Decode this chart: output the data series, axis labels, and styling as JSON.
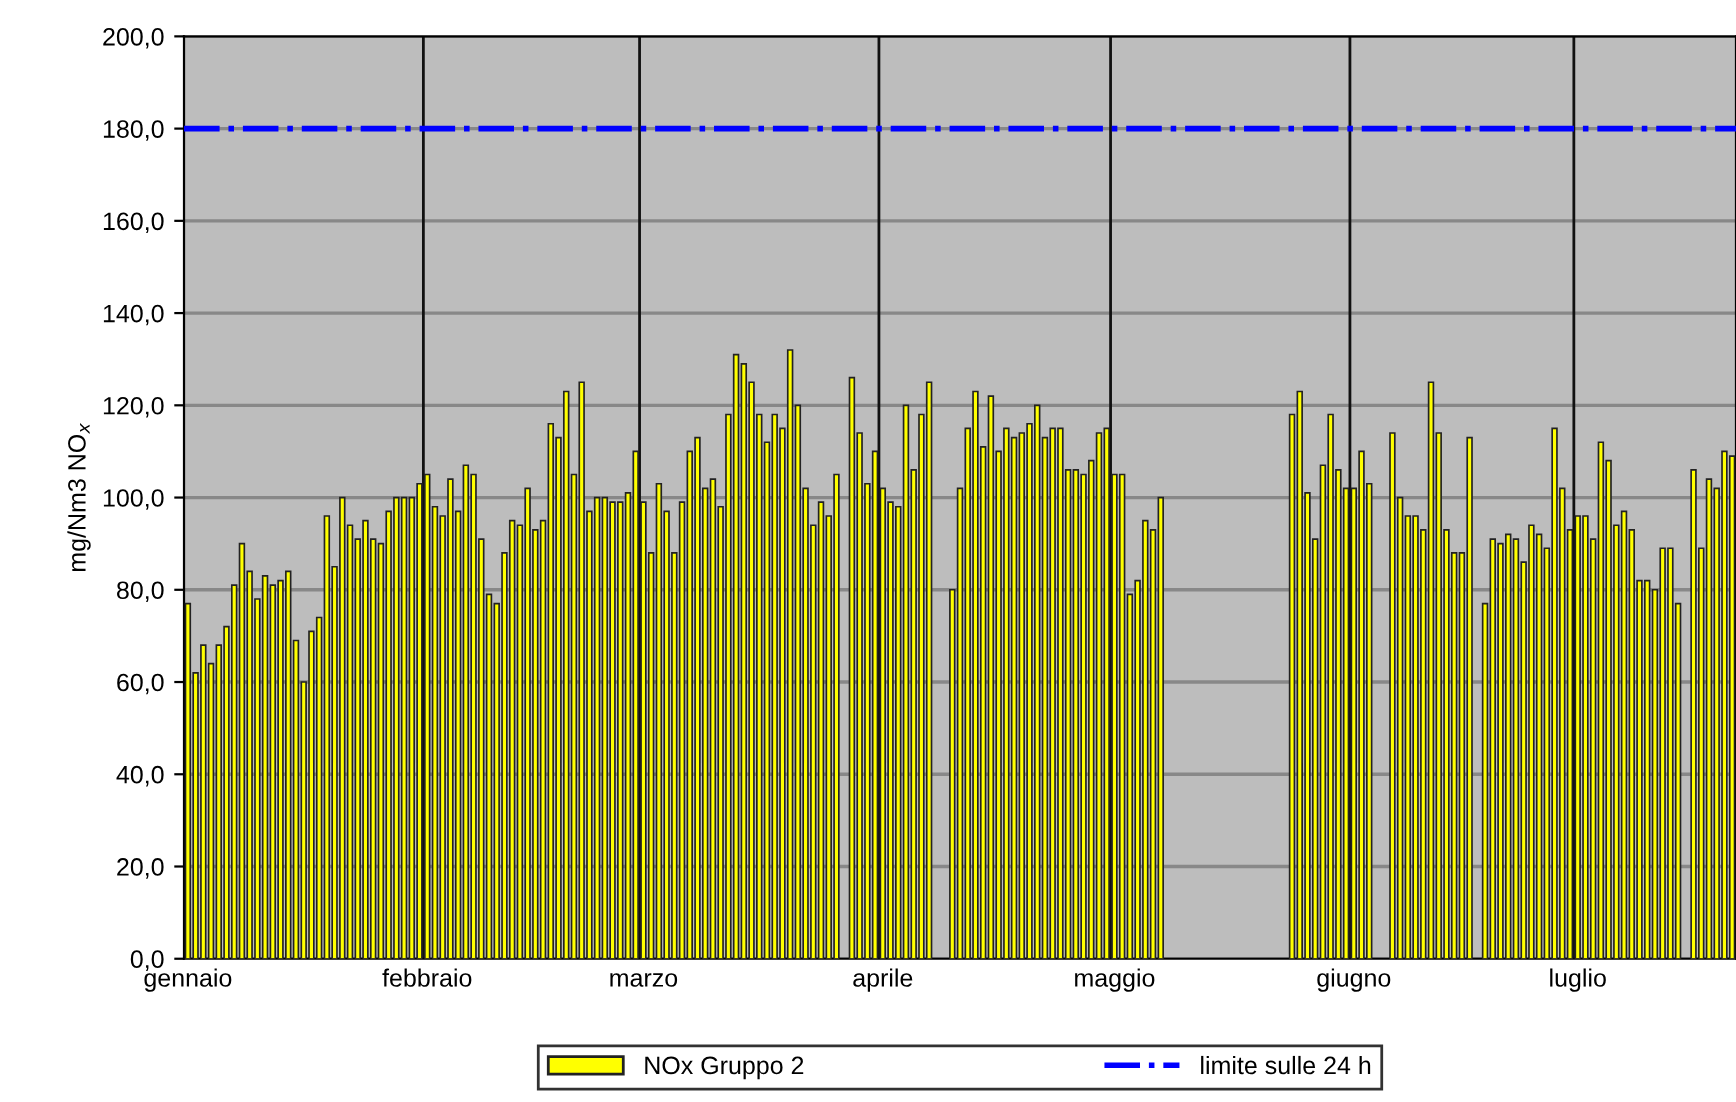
{
  "chart_data": {
    "type": "bar",
    "ylabel": "mg/Nm3 NO$_{x}$",
    "categories": [
      "gennaio",
      null,
      null,
      null,
      null,
      null,
      null,
      null,
      null,
      null,
      null,
      null,
      null,
      null,
      null,
      null,
      null,
      null,
      null,
      null,
      null,
      null,
      null,
      null,
      null,
      null,
      null,
      null,
      null,
      null,
      null,
      "febbraio",
      null,
      null,
      null,
      null,
      null,
      null,
      null,
      null,
      null,
      null,
      null,
      null,
      null,
      null,
      null,
      null,
      null,
      null,
      null,
      null,
      null,
      null,
      null,
      null,
      null,
      null,
      null,
      "marzo",
      null,
      null,
      null,
      null,
      null,
      null,
      null,
      null,
      null,
      null,
      null,
      null,
      null,
      null,
      null,
      null,
      null,
      null,
      null,
      null,
      null,
      null,
      null,
      null,
      null,
      null,
      null,
      null,
      null,
      null,
      "aprile",
      null,
      null,
      null,
      null,
      null,
      null,
      null,
      null,
      null,
      null,
      null,
      null,
      null,
      null,
      null,
      null,
      null,
      null,
      null,
      null,
      null,
      null,
      null,
      null,
      null,
      null,
      null,
      null,
      null,
      "maggio",
      null,
      null,
      null,
      null,
      null,
      null,
      null,
      null,
      null,
      null,
      null,
      null,
      null,
      null,
      null,
      null,
      null,
      null,
      null,
      null,
      null,
      null,
      null,
      null,
      null,
      null,
      null,
      null,
      null,
      null,
      "giugno",
      null,
      null,
      null,
      null,
      null,
      null,
      null,
      null,
      null,
      null,
      null,
      null,
      null,
      null,
      null,
      null,
      null,
      null,
      null,
      null,
      null,
      null,
      null,
      null,
      null,
      null,
      null,
      null,
      "luglio",
      null,
      null,
      null,
      null,
      null,
      null,
      null,
      null,
      null,
      null,
      null,
      null,
      null,
      null,
      null,
      null,
      null,
      null,
      null,
      null
    ],
    "series": [
      {
        "name": "NOx Gruppo 2",
        "color": "#ffff00",
        "values": [
          77,
          62,
          68,
          64,
          68,
          72,
          81,
          90,
          84,
          78,
          83,
          81,
          82,
          84,
          69,
          60,
          71,
          74,
          96,
          85,
          100,
          94,
          91,
          95,
          91,
          90,
          97,
          100,
          100,
          100,
          103,
          105,
          98,
          96,
          104,
          97,
          107,
          105,
          91,
          79,
          77,
          88,
          95,
          94,
          102,
          93,
          95,
          116,
          113,
          123,
          105,
          125,
          97,
          100,
          100,
          99,
          99,
          101,
          110,
          99,
          88,
          103,
          97,
          88,
          99,
          110,
          113,
          102,
          104,
          98,
          118,
          131,
          129,
          125,
          118,
          112,
          118,
          115,
          132,
          120,
          102,
          94,
          99,
          96,
          105,
          null,
          126,
          114,
          103,
          110,
          102,
          99,
          98,
          120,
          106,
          118,
          125,
          null,
          null,
          80,
          102,
          115,
          123,
          111,
          122,
          110,
          115,
          113,
          114,
          116,
          120,
          113,
          115,
          115,
          106,
          106,
          105,
          108,
          114,
          115,
          105,
          105,
          79,
          82,
          95,
          93,
          100,
          null,
          null,
          null,
          null,
          null,
          null,
          null,
          null,
          null,
          null,
          null,
          null,
          null,
          null,
          null,
          null,
          118,
          123,
          101,
          91,
          107,
          118,
          106,
          102,
          102,
          110,
          103,
          null,
          null,
          114,
          100,
          96,
          96,
          93,
          125,
          114,
          93,
          88,
          88,
          113,
          null,
          77,
          91,
          90,
          92,
          91,
          86,
          94,
          92,
          89,
          115,
          102,
          93,
          96,
          96,
          91,
          112,
          108,
          94,
          97,
          93,
          82,
          82,
          80,
          89,
          89,
          77,
          null,
          106,
          89,
          104,
          102,
          110,
          109
        ]
      }
    ],
    "ylim": [
      0,
      200
    ],
    "yticks": [
      {
        "value": 0,
        "label": "0,0"
      },
      {
        "value": 20,
        "label": "20,0"
      },
      {
        "value": 40,
        "label": "40,0"
      },
      {
        "value": 60,
        "label": "60,0"
      },
      {
        "value": 80,
        "label": "80,0"
      },
      {
        "value": 100,
        "label": "100,0"
      },
      {
        "value": 120,
        "label": "120,0"
      },
      {
        "value": 140,
        "label": "140,0"
      },
      {
        "value": 160,
        "label": "160,0"
      },
      {
        "value": 180,
        "label": "180,0"
      },
      {
        "value": 200,
        "label": "200,0"
      }
    ],
    "ref_lines": [
      {
        "axis": "y",
        "value": 180,
        "label": "limite sulle 24 h",
        "color": "#0000ff",
        "line_style": "dashdot"
      }
    ],
    "grid": true,
    "legend": "bottom"
  }
}
